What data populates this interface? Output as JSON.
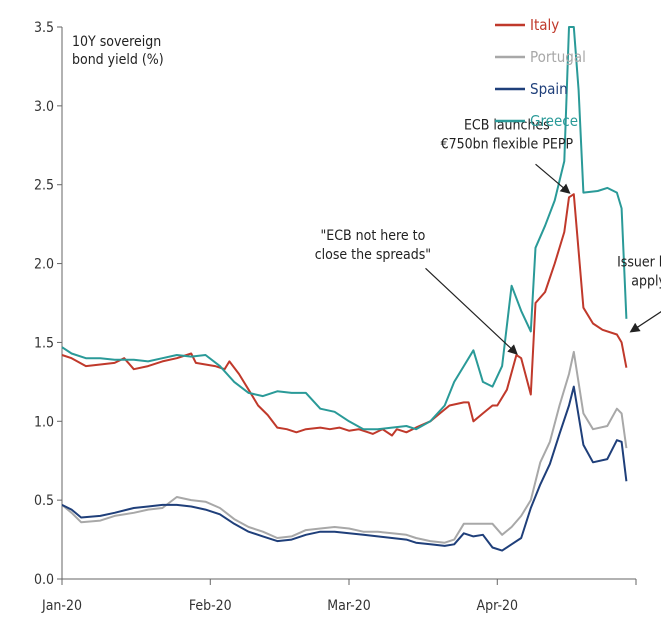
{
  "chart_data": {
    "type": "line",
    "title": "",
    "ylabel_lines": [
      "10Y sovereign",
      "bond yield (%)"
    ],
    "xlabel": "",
    "ylim": [
      0,
      3.5
    ],
    "yticks": [
      "0.0",
      "0.5",
      "1.0",
      "1.5",
      "2.0",
      "2.5",
      "3.0",
      "3.5"
    ],
    "ytick_values": [
      0,
      0.5,
      1.0,
      1.5,
      2.0,
      2.5,
      3.0,
      3.5
    ],
    "x_start": "2020-01-01",
    "x_end": "2020-04-30",
    "xticks": [
      {
        "label": "Jan-20",
        "date": "2020-01-01"
      },
      {
        "label": "Feb-20",
        "date": "2020-02-01"
      },
      {
        "label": "Mar-20",
        "date": "2020-03-01"
      },
      {
        "label": "Apr-20",
        "date": "2020-04-01"
      }
    ],
    "legend_position": "top-right",
    "grid": false,
    "series": [
      {
        "name": "Italy",
        "color": "#c0392b",
        "points": [
          [
            "2020-01-01",
            1.42
          ],
          [
            "2020-01-03",
            1.4
          ],
          [
            "2020-01-06",
            1.35
          ],
          [
            "2020-01-09",
            1.36
          ],
          [
            "2020-01-12",
            1.37
          ],
          [
            "2020-01-14",
            1.4
          ],
          [
            "2020-01-16",
            1.33
          ],
          [
            "2020-01-19",
            1.35
          ],
          [
            "2020-01-22",
            1.38
          ],
          [
            "2020-01-25",
            1.4
          ],
          [
            "2020-01-28",
            1.43
          ],
          [
            "2020-01-29",
            1.37
          ],
          [
            "2020-01-31",
            1.36
          ],
          [
            "2020-02-02",
            1.35
          ],
          [
            "2020-02-04",
            1.33
          ],
          [
            "2020-02-05",
            1.38
          ],
          [
            "2020-02-07",
            1.3
          ],
          [
            "2020-02-09",
            1.2
          ],
          [
            "2020-02-11",
            1.1
          ],
          [
            "2020-02-13",
            1.04
          ],
          [
            "2020-02-15",
            0.96
          ],
          [
            "2020-02-17",
            0.95
          ],
          [
            "2020-02-19",
            0.93
          ],
          [
            "2020-02-21",
            0.95
          ],
          [
            "2020-02-24",
            0.96
          ],
          [
            "2020-02-26",
            0.95
          ],
          [
            "2020-02-28",
            0.96
          ],
          [
            "2020-03-01",
            0.94
          ],
          [
            "2020-03-03",
            0.95
          ],
          [
            "2020-03-05",
            0.93
          ],
          [
            "2020-03-06",
            0.92
          ],
          [
            "2020-03-08",
            0.95
          ],
          [
            "2020-03-10",
            0.91
          ],
          [
            "2020-03-11",
            0.95
          ],
          [
            "2020-03-13",
            0.93
          ],
          [
            "2020-03-15",
            0.96
          ],
          [
            "2020-03-18",
            1.0
          ],
          [
            "2020-03-20",
            1.05
          ],
          [
            "2020-03-22",
            1.1
          ],
          [
            "2020-03-25",
            1.12
          ],
          [
            "2020-03-26",
            1.12
          ],
          [
            "2020-03-27",
            1.0
          ],
          [
            "2020-03-29",
            1.05
          ],
          [
            "2020-03-31",
            1.1
          ],
          [
            "2020-04-01",
            1.1
          ],
          [
            "2020-04-03",
            1.2
          ],
          [
            "2020-04-05",
            1.42
          ],
          [
            "2020-04-06",
            1.4
          ],
          [
            "2020-04-08",
            1.17
          ],
          [
            "2020-04-09",
            1.75
          ],
          [
            "2020-04-11",
            1.82
          ],
          [
            "2020-04-13",
            2.0
          ],
          [
            "2020-04-15",
            2.2
          ],
          [
            "2020-04-16",
            2.42
          ],
          [
            "2020-04-17",
            2.44
          ],
          [
            "2020-04-19",
            1.72
          ],
          [
            "2020-04-21",
            1.62
          ],
          [
            "2020-04-23",
            1.58
          ],
          [
            "2020-04-26",
            1.55
          ],
          [
            "2020-04-27",
            1.5
          ],
          [
            "2020-04-28",
            1.34
          ]
        ]
      },
      {
        "name": "Portugal",
        "color": "#a8a8a8",
        "points": [
          [
            "2020-01-01",
            0.47
          ],
          [
            "2020-01-03",
            0.42
          ],
          [
            "2020-01-05",
            0.36
          ],
          [
            "2020-01-09",
            0.37
          ],
          [
            "2020-01-12",
            0.4
          ],
          [
            "2020-01-16",
            0.42
          ],
          [
            "2020-01-19",
            0.44
          ],
          [
            "2020-01-22",
            0.45
          ],
          [
            "2020-01-25",
            0.52
          ],
          [
            "2020-01-28",
            0.5
          ],
          [
            "2020-01-31",
            0.49
          ],
          [
            "2020-02-03",
            0.45
          ],
          [
            "2020-02-06",
            0.38
          ],
          [
            "2020-02-09",
            0.33
          ],
          [
            "2020-02-12",
            0.3
          ],
          [
            "2020-02-15",
            0.26
          ],
          [
            "2020-02-18",
            0.27
          ],
          [
            "2020-02-21",
            0.31
          ],
          [
            "2020-02-24",
            0.32
          ],
          [
            "2020-02-27",
            0.33
          ],
          [
            "2020-03-01",
            0.32
          ],
          [
            "2020-03-04",
            0.3
          ],
          [
            "2020-03-07",
            0.3
          ],
          [
            "2020-03-10",
            0.29
          ],
          [
            "2020-03-13",
            0.28
          ],
          [
            "2020-03-15",
            0.26
          ],
          [
            "2020-03-18",
            0.24
          ],
          [
            "2020-03-21",
            0.23
          ],
          [
            "2020-03-23",
            0.25
          ],
          [
            "2020-03-25",
            0.35
          ],
          [
            "2020-03-27",
            0.35
          ],
          [
            "2020-03-29",
            0.35
          ],
          [
            "2020-03-31",
            0.35
          ],
          [
            "2020-04-02",
            0.28
          ],
          [
            "2020-04-04",
            0.33
          ],
          [
            "2020-04-06",
            0.4
          ],
          [
            "2020-04-08",
            0.5
          ],
          [
            "2020-04-10",
            0.74
          ],
          [
            "2020-04-12",
            0.87
          ],
          [
            "2020-04-14",
            1.1
          ],
          [
            "2020-04-16",
            1.3
          ],
          [
            "2020-04-17",
            1.44
          ],
          [
            "2020-04-19",
            1.05
          ],
          [
            "2020-04-21",
            0.95
          ],
          [
            "2020-04-24",
            0.97
          ],
          [
            "2020-04-26",
            1.08
          ],
          [
            "2020-04-27",
            1.05
          ],
          [
            "2020-04-28",
            0.83
          ]
        ]
      },
      {
        "name": "Spain",
        "color": "#1f3f7a",
        "points": [
          [
            "2020-01-01",
            0.47
          ],
          [
            "2020-01-03",
            0.44
          ],
          [
            "2020-01-05",
            0.39
          ],
          [
            "2020-01-09",
            0.4
          ],
          [
            "2020-01-12",
            0.42
          ],
          [
            "2020-01-16",
            0.45
          ],
          [
            "2020-01-19",
            0.46
          ],
          [
            "2020-01-22",
            0.47
          ],
          [
            "2020-01-25",
            0.47
          ],
          [
            "2020-01-28",
            0.46
          ],
          [
            "2020-01-31",
            0.44
          ],
          [
            "2020-02-03",
            0.41
          ],
          [
            "2020-02-06",
            0.35
          ],
          [
            "2020-02-09",
            0.3
          ],
          [
            "2020-02-12",
            0.27
          ],
          [
            "2020-02-15",
            0.24
          ],
          [
            "2020-02-18",
            0.25
          ],
          [
            "2020-02-21",
            0.28
          ],
          [
            "2020-02-24",
            0.3
          ],
          [
            "2020-02-27",
            0.3
          ],
          [
            "2020-03-01",
            0.29
          ],
          [
            "2020-03-04",
            0.28
          ],
          [
            "2020-03-07",
            0.27
          ],
          [
            "2020-03-10",
            0.26
          ],
          [
            "2020-03-13",
            0.25
          ],
          [
            "2020-03-15",
            0.23
          ],
          [
            "2020-03-18",
            0.22
          ],
          [
            "2020-03-21",
            0.21
          ],
          [
            "2020-03-23",
            0.22
          ],
          [
            "2020-03-25",
            0.29
          ],
          [
            "2020-03-27",
            0.27
          ],
          [
            "2020-03-29",
            0.28
          ],
          [
            "2020-03-31",
            0.2
          ],
          [
            "2020-04-02",
            0.18
          ],
          [
            "2020-04-04",
            0.22
          ],
          [
            "2020-04-06",
            0.26
          ],
          [
            "2020-04-08",
            0.45
          ],
          [
            "2020-04-10",
            0.6
          ],
          [
            "2020-04-12",
            0.73
          ],
          [
            "2020-04-14",
            0.92
          ],
          [
            "2020-04-16",
            1.1
          ],
          [
            "2020-04-17",
            1.22
          ],
          [
            "2020-04-19",
            0.85
          ],
          [
            "2020-04-21",
            0.74
          ],
          [
            "2020-04-24",
            0.76
          ],
          [
            "2020-04-26",
            0.88
          ],
          [
            "2020-04-27",
            0.87
          ],
          [
            "2020-04-28",
            0.62
          ]
        ]
      },
      {
        "name": "Greece",
        "color": "#2a9a98",
        "points": [
          [
            "2020-01-01",
            1.47
          ],
          [
            "2020-01-03",
            1.43
          ],
          [
            "2020-01-06",
            1.4
          ],
          [
            "2020-01-09",
            1.4
          ],
          [
            "2020-01-12",
            1.39
          ],
          [
            "2020-01-16",
            1.39
          ],
          [
            "2020-01-19",
            1.38
          ],
          [
            "2020-01-22",
            1.4
          ],
          [
            "2020-01-25",
            1.42
          ],
          [
            "2020-01-28",
            1.41
          ],
          [
            "2020-01-31",
            1.42
          ],
          [
            "2020-02-03",
            1.35
          ],
          [
            "2020-02-06",
            1.25
          ],
          [
            "2020-02-09",
            1.18
          ],
          [
            "2020-02-12",
            1.16
          ],
          [
            "2020-02-15",
            1.19
          ],
          [
            "2020-02-18",
            1.18
          ],
          [
            "2020-02-21",
            1.18
          ],
          [
            "2020-02-24",
            1.08
          ],
          [
            "2020-02-27",
            1.06
          ],
          [
            "2020-03-01",
            1.0
          ],
          [
            "2020-03-04",
            0.95
          ],
          [
            "2020-03-07",
            0.95
          ],
          [
            "2020-03-10",
            0.96
          ],
          [
            "2020-03-13",
            0.97
          ],
          [
            "2020-03-15",
            0.95
          ],
          [
            "2020-03-18",
            1.0
          ],
          [
            "2020-03-21",
            1.1
          ],
          [
            "2020-03-23",
            1.25
          ],
          [
            "2020-03-25",
            1.35
          ],
          [
            "2020-03-27",
            1.45
          ],
          [
            "2020-03-29",
            1.25
          ],
          [
            "2020-03-31",
            1.22
          ],
          [
            "2020-04-02",
            1.35
          ],
          [
            "2020-04-04",
            1.86
          ],
          [
            "2020-04-06",
            1.7
          ],
          [
            "2020-04-08",
            1.57
          ],
          [
            "2020-04-09",
            2.1
          ],
          [
            "2020-04-11",
            2.24
          ],
          [
            "2020-04-13",
            2.4
          ],
          [
            "2020-04-15",
            2.65
          ],
          [
            "2020-04-16",
            3.5
          ],
          [
            "2020-04-17",
            3.5
          ],
          [
            "2020-04-18",
            3.1
          ],
          [
            "2020-04-19",
            2.45
          ],
          [
            "2020-04-22",
            2.46
          ],
          [
            "2020-04-24",
            2.48
          ],
          [
            "2020-04-26",
            2.45
          ],
          [
            "2020-04-27",
            2.35
          ],
          [
            "2020-04-28",
            1.65
          ]
        ]
      }
    ],
    "annotations": [
      {
        "name": "ecb-pepp",
        "lines": [
          "ECB launches",
          "€750bn flexible PEPP"
        ],
        "text_anchor_date": "2020-04-03",
        "text_y": 2.85,
        "arrow_to_date": "2020-04-16",
        "arrow_to_y": 2.45,
        "arrow_from_date": "2020-04-09",
        "arrow_from_y": 2.63
      },
      {
        "name": "ecb-spreads",
        "lines": [
          "\"ECB not here to",
          "close the spreads\""
        ],
        "text_anchor_date": "2020-03-06",
        "text_y": 2.15,
        "arrow_to_date": "2020-04-05",
        "arrow_to_y": 1.43,
        "arrow_from_date": "2020-03-17",
        "arrow_from_y": 1.97
      },
      {
        "name": "issuer-limits",
        "lines": [
          "Issuer limits won't",
          "apply to PEPP"
        ],
        "text_anchor_date": "2020-05-08",
        "text_y": 1.98,
        "arrow_to_date": "2020-04-29",
        "arrow_to_y": 1.57,
        "arrow_from_date": "2020-05-06",
        "arrow_from_y": 1.71
      }
    ]
  }
}
